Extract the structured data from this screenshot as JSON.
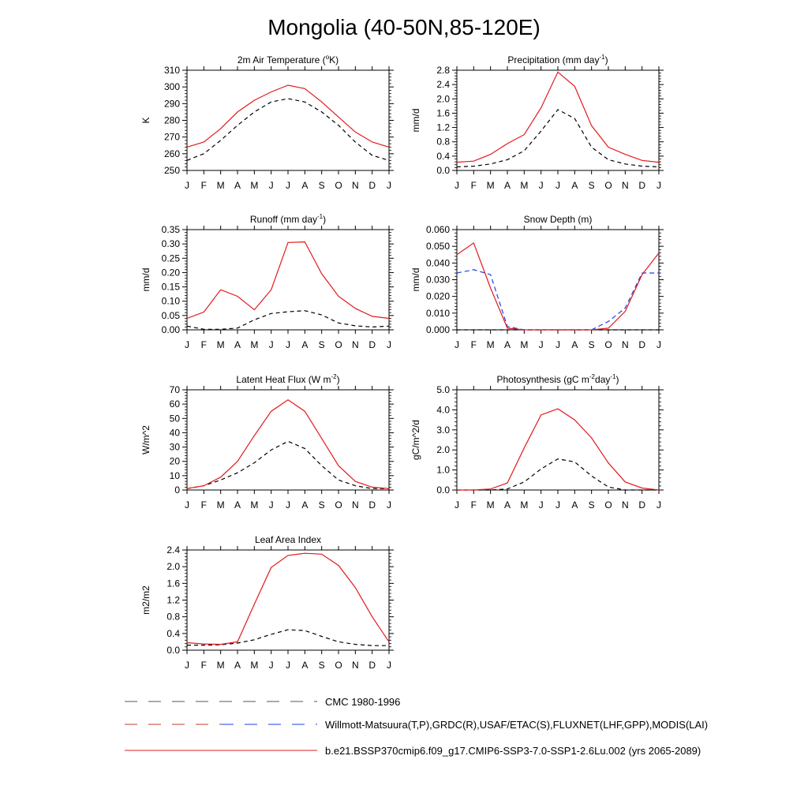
{
  "title": "Mongolia (40-50N,85-120E)",
  "months": [
    "J",
    "F",
    "M",
    "A",
    "M",
    "J",
    "J",
    "A",
    "S",
    "O",
    "N",
    "D",
    "J"
  ],
  "colors": {
    "model": "#e31a1c",
    "cmc": "#000000",
    "obs_blue": "#1f3fe0",
    "obs_red": "#c0392b"
  },
  "legend": [
    {
      "label": "CMC 1980-1996",
      "style": "dash-black"
    },
    {
      "label": "Willmott-Matsuura(T,P),GRDC(R),USAF/ETAC(S),FLUXNET(LHF,GPP),MODIS(LAI)",
      "style": "dash-red-blue"
    },
    {
      "label": "b.e21.BSSP370cmip6.f09_g17.CMIP6-SSP3-7.0-SSP1-2.6Lu.002 (yrs 2065-2089)",
      "style": "solid-red"
    }
  ],
  "chart_data": [
    {
      "type": "line",
      "title": "2m Air Temperature (oK)",
      "title_parts": [
        "2m Air Temperature (",
        "o",
        "K)"
      ],
      "ylabel": "K",
      "ylim": [
        250,
        310
      ],
      "yticks": [
        250,
        260,
        270,
        280,
        290,
        300,
        310
      ],
      "ytick_labels": [
        "250",
        "260",
        "270",
        "280",
        "290",
        "300",
        "310"
      ],
      "series": [
        {
          "role": "model",
          "values": [
            264,
            267,
            275,
            285,
            292,
            297,
            301,
            299,
            291,
            282,
            273,
            267,
            264
          ]
        },
        {
          "role": "cmc",
          "values": [
            256,
            260,
            268,
            277,
            285,
            291,
            293,
            291,
            285,
            277,
            267,
            259,
            256
          ]
        }
      ]
    },
    {
      "type": "line",
      "title": "Precipitation (mm day-1)",
      "title_parts": [
        "Precipitation (mm day",
        "-1",
        ")"
      ],
      "ylabel": "mm/d",
      "ylim": [
        0,
        2.8
      ],
      "yticks": [
        0,
        0.4,
        0.8,
        1.2,
        1.6,
        2.0,
        2.4,
        2.8
      ],
      "ytick_labels": [
        "0.0",
        "0.4",
        "0.8",
        "1.2",
        "1.6",
        "2.0",
        "2.4",
        "2.8"
      ],
      "series": [
        {
          "role": "model",
          "values": [
            0.23,
            0.26,
            0.45,
            0.75,
            1.0,
            1.75,
            2.75,
            2.35,
            1.25,
            0.65,
            0.45,
            0.28,
            0.23
          ]
        },
        {
          "role": "cmc",
          "values": [
            0.1,
            0.12,
            0.18,
            0.3,
            0.55,
            1.1,
            1.7,
            1.45,
            0.65,
            0.3,
            0.18,
            0.12,
            0.1
          ]
        }
      ]
    },
    {
      "type": "line",
      "title": "Runoff (mm day-1)",
      "title_parts": [
        "Runoff (mm day",
        "-1",
        ")"
      ],
      "ylabel": "mm/d",
      "ylim": [
        0,
        0.35
      ],
      "yticks": [
        0,
        0.05,
        0.1,
        0.15,
        0.2,
        0.25,
        0.3,
        0.35
      ],
      "ytick_labels": [
        "0.00",
        "0.05",
        "0.10",
        "0.15",
        "0.20",
        "0.25",
        "0.30",
        "0.35"
      ],
      "series": [
        {
          "role": "model",
          "values": [
            0.04,
            0.062,
            0.14,
            0.117,
            0.07,
            0.14,
            0.305,
            0.307,
            0.196,
            0.117,
            0.075,
            0.047,
            0.04
          ]
        },
        {
          "role": "cmc",
          "values": [
            0.013,
            0.002,
            0.002,
            0.006,
            0.035,
            0.057,
            0.063,
            0.067,
            0.052,
            0.024,
            0.014,
            0.01,
            0.013
          ]
        }
      ]
    },
    {
      "type": "line",
      "title": "Snow Depth (m)",
      "title_parts": [
        "Snow Depth (m)"
      ],
      "ylabel": "mm/d",
      "ylim": [
        0,
        0.06
      ],
      "yticks": [
        0,
        0.01,
        0.02,
        0.03,
        0.04,
        0.05,
        0.06
      ],
      "ytick_labels": [
        "0.000",
        "0.010",
        "0.020",
        "0.030",
        "0.040",
        "0.050",
        "0.060"
      ],
      "series": [
        {
          "role": "model",
          "values": [
            0.045,
            0.052,
            0.025,
            0.001,
            0,
            0,
            0,
            0,
            0,
            0.001,
            0.011,
            0.033,
            0.046
          ]
        },
        {
          "role": "obs",
          "values": [
            0.034,
            0.036,
            0.033,
            0.002,
            0,
            0,
            0,
            0,
            0,
            0.005,
            0.013,
            0.034,
            0.034
          ]
        },
        {
          "role": "cmc",
          "values": [
            0,
            0,
            0,
            0,
            0,
            0,
            0,
            0,
            0,
            0,
            0,
            0,
            0
          ]
        }
      ]
    },
    {
      "type": "line",
      "title": "Latent Heat Flux (W m-2)",
      "title_parts": [
        "Latent Heat Flux (W m",
        "-2",
        ")"
      ],
      "ylabel": "W/m^2",
      "ylim": [
        0,
        70
      ],
      "yticks": [
        0,
        10,
        20,
        30,
        40,
        50,
        60,
        70
      ],
      "ytick_labels": [
        "0",
        "10",
        "20",
        "30",
        "40",
        "50",
        "60",
        "70"
      ],
      "series": [
        {
          "role": "model",
          "values": [
            1,
            3,
            9,
            20,
            38,
            55,
            63,
            55,
            36,
            17,
            6,
            2,
            1
          ]
        },
        {
          "role": "cmc",
          "values": [
            1,
            3,
            7,
            12,
            19,
            28,
            34,
            29,
            17,
            7,
            3,
            1,
            1
          ]
        }
      ]
    },
    {
      "type": "line",
      "title": "Photosynthesis (gC m-2day-1)",
      "title_parts": [
        "Photosynthesis (gC m",
        "-2",
        "day",
        "-1",
        ")"
      ],
      "ylabel": "gC/m^2/d",
      "ylim": [
        0,
        5
      ],
      "yticks": [
        0,
        1,
        2,
        3,
        4,
        5
      ],
      "ytick_labels": [
        "0.0",
        "1.0",
        "2.0",
        "3.0",
        "4.0",
        "5.0"
      ],
      "series": [
        {
          "role": "model",
          "values": [
            0,
            0,
            0.05,
            0.35,
            2.1,
            3.75,
            4.05,
            3.5,
            2.6,
            1.35,
            0.4,
            0.1,
            0
          ]
        },
        {
          "role": "cmc",
          "values": [
            0,
            0,
            0,
            0.05,
            0.4,
            1.05,
            1.55,
            1.4,
            0.7,
            0.15,
            0,
            0,
            0
          ]
        }
      ]
    },
    {
      "type": "line",
      "title": "Leaf Area Index",
      "title_parts": [
        "Leaf Area Index"
      ],
      "ylabel": "m2/m2",
      "ylim": [
        0,
        2.4
      ],
      "yticks": [
        0,
        0.4,
        0.8,
        1.2,
        1.6,
        2.0,
        2.4
      ],
      "ytick_labels": [
        "0.0",
        "0.4",
        "0.8",
        "1.2",
        "1.6",
        "2.0",
        "2.4"
      ],
      "series": [
        {
          "role": "model",
          "values": [
            0.18,
            0.15,
            0.14,
            0.2,
            1.1,
            1.98,
            2.27,
            2.32,
            2.3,
            2.03,
            1.5,
            0.8,
            0.2
          ]
        },
        {
          "role": "cmc",
          "values": [
            0.12,
            0.12,
            0.13,
            0.17,
            0.25,
            0.38,
            0.49,
            0.47,
            0.33,
            0.2,
            0.14,
            0.11,
            0.11
          ]
        }
      ]
    }
  ]
}
